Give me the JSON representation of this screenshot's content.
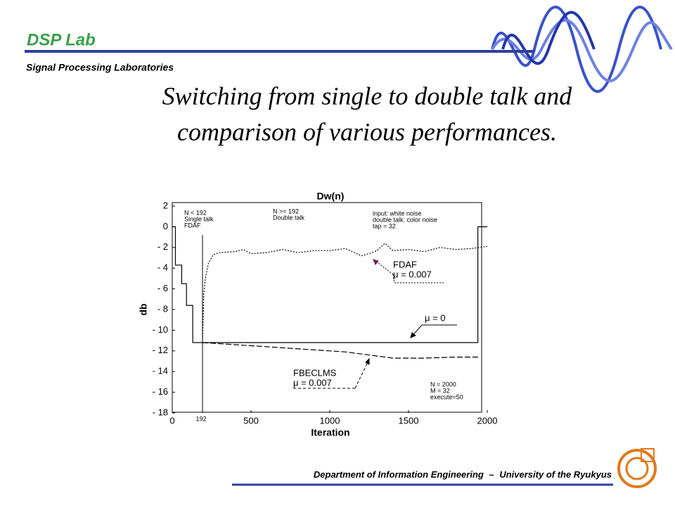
{
  "header": {
    "lab": "DSP Lab",
    "subtitle": "Signal Processing Laboratories"
  },
  "slide_title": [
    "Switching from single to double talk and",
    "comparison of  various performances."
  ],
  "footer": {
    "department": "Department of Information Engineering",
    "separator": "–",
    "university": "University of the Ryukyus"
  },
  "chart_data": {
    "type": "line",
    "title": "Dw(n)",
    "x_label": "Iteration",
    "y_label": "db",
    "xlim": [
      0,
      2000
    ],
    "ylim": [
      -18,
      2
    ],
    "xticks": [
      0,
      500,
      1000,
      1500,
      2000
    ],
    "yticks": [
      {
        "value": 2,
        "label": "2"
      },
      {
        "value": 0,
        "label": "0"
      },
      {
        "value": -2,
        "label": "- 2"
      },
      {
        "value": -4,
        "label": "- 4"
      },
      {
        "value": -6,
        "label": "- 6"
      },
      {
        "value": -8,
        "label": "- 8"
      },
      {
        "value": -10,
        "label": "- 10"
      },
      {
        "value": -12,
        "label": "- 12"
      },
      {
        "value": -14,
        "label": "- 14"
      },
      {
        "value": -16,
        "label": "- 16"
      },
      {
        "value": -18,
        "label": "- 18"
      }
    ],
    "vline": 192,
    "series": [
      {
        "name": "μ   = 0",
        "color": "#000000",
        "dash": "solid",
        "x": [
          0,
          20,
          20,
          60,
          60,
          90,
          90,
          130,
          130,
          1940,
          1940,
          2000
        ],
        "values": [
          0,
          0,
          -3.7,
          -3.7,
          -5.5,
          -5.5,
          -7.6,
          -7.6,
          -11.2,
          -11.2,
          0,
          0
        ]
      },
      {
        "name": "FDAF",
        "label": "μ    = 0.007",
        "color": "#000000",
        "dash": "dotted",
        "x": [
          192,
          200,
          210,
          230,
          260,
          300,
          400,
          450,
          500,
          600,
          700,
          800,
          900,
          1000,
          1100,
          1200,
          1250,
          1300,
          1350,
          1400,
          1500,
          1600,
          1700,
          1800,
          1900,
          2000
        ],
        "values": [
          -11.2,
          -6.5,
          -5,
          -3.5,
          -2.7,
          -2.5,
          -2.4,
          -2.2,
          -2.6,
          -2.5,
          -2.2,
          -2.5,
          -2.3,
          -2.3,
          -2.1,
          -2.8,
          -2.6,
          -2.3,
          -1.6,
          -2.3,
          -2.2,
          -2.4,
          -2,
          -2.2,
          -2.1,
          -1.9
        ]
      },
      {
        "name": "FBECLMS",
        "label": "μ    = 0.007",
        "color": "#000000",
        "dash": "dashed",
        "x": [
          192,
          400,
          600,
          800,
          1000,
          1100,
          1200,
          1300,
          1400,
          1600,
          1800,
          1950
        ],
        "values": [
          -11.2,
          -11.4,
          -11.6,
          -11.8,
          -12.0,
          -12.1,
          -12.3,
          -12.5,
          -12.7,
          -12.7,
          -12.6,
          -12.6
        ]
      }
    ],
    "notes": [
      [
        "N < 192",
        "Single talk",
        "FDAF"
      ],
      [
        "N >= 192",
        "Double talk"
      ],
      [
        "input: white noise",
        "double talk: color noise",
        "tap = 32"
      ],
      [
        "N = 2000",
        "M = 32",
        "execute=50"
      ]
    ]
  }
}
